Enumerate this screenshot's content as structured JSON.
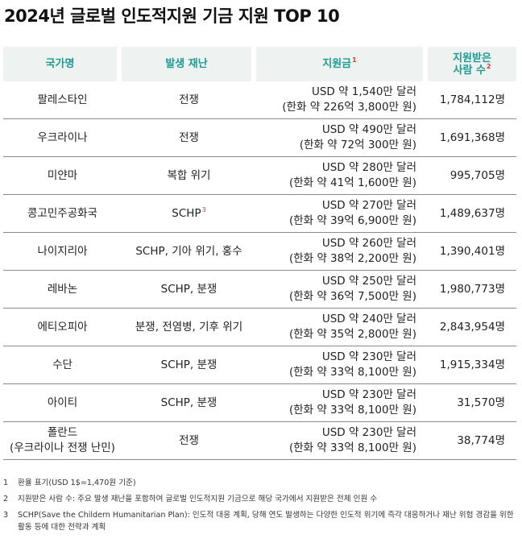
{
  "title": "2024년 글로벌 인도적지원 기금 지원 TOP 10",
  "headers": {
    "country": "국가명",
    "disaster": "발생 재난",
    "amount": "지원금",
    "amount_sup": "1",
    "people_line1": "지원받은",
    "people_line2": "사람 수",
    "people_sup": "2"
  },
  "rows": [
    {
      "country": "팔레스타인",
      "country2": "",
      "disaster": "전쟁",
      "disaster_sup": "",
      "usd": "USD 약 1,540만 달러",
      "krw": "(한화 약 226억 3,800만 원)",
      "people": "1,784,112명"
    },
    {
      "country": "우크라이나",
      "country2": "",
      "disaster": "전쟁",
      "disaster_sup": "",
      "usd": "USD 약 490만 달러",
      "krw": "(한화 약 72억 300만 원)",
      "people": "1,691,368명"
    },
    {
      "country": "미얀마",
      "country2": "",
      "disaster": "복합 위기",
      "disaster_sup": "",
      "usd": "USD 약 280만 달러",
      "krw": "(한화 약 41억 1,600만 원)",
      "people": "995,705명"
    },
    {
      "country": "콩고민주공화국",
      "country2": "",
      "disaster": "SCHP",
      "disaster_sup": "3",
      "usd": "USD 약 270만 달러",
      "krw": "(한화 약 39억 6,900만 원)",
      "people": "1,489,637명"
    },
    {
      "country": "나이지리아",
      "country2": "",
      "disaster": "SCHP, 기아 위기, 홍수",
      "disaster_sup": "",
      "usd": "USD 약 260만 달러",
      "krw": "(한화 약 38억 2,200만 원)",
      "people": "1,390,401명"
    },
    {
      "country": "레바논",
      "country2": "",
      "disaster": "SCHP, 분쟁",
      "disaster_sup": "",
      "usd": "USD 약 250만 달러",
      "krw": "(한화 약 36억 7,500만 원)",
      "people": "1,980,773명"
    },
    {
      "country": "에티오피아",
      "country2": "",
      "disaster": "분쟁, 전염병, 기후 위기",
      "disaster_sup": "",
      "usd": "USD 약 240만 달러",
      "krw": "(한화 약 35억 2,800만 원)",
      "people": "2,843,954명"
    },
    {
      "country": "수단",
      "country2": "",
      "disaster": "SCHP, 분쟁",
      "disaster_sup": "",
      "usd": "USD 약 230만 달러",
      "krw": "(한화 약 33억 8,100만 원)",
      "people": "1,915,334명"
    },
    {
      "country": "아이티",
      "country2": "",
      "disaster": "SCHP, 분쟁",
      "disaster_sup": "",
      "usd": "USD 약 230만 달러",
      "krw": "(한화 약 33억 8,100만 원)",
      "people": "31,570명"
    },
    {
      "country": "폴란드",
      "country2": "(우크라이나 전쟁 난민)",
      "disaster": "전쟁",
      "disaster_sup": "",
      "usd": "USD 약 230만 달러",
      "krw": "(한화 약 33억 8,100만 원)",
      "people": "38,774명"
    }
  ],
  "notes": [
    {
      "num": "1",
      "text": "환율 표기(USD 1$=1,470원 기준)"
    },
    {
      "num": "2",
      "text": "지원받은 사람 수: 주요 발생 재난을 포함하여 글로벌 인도적지원 기금으로 해당 국가에서 지원받은 전체 인원 수"
    },
    {
      "num": "3",
      "text": "SCHP(Save the Childern Humanitarian Plan): 인도적 대응 계획, 당해 연도 발생하는 다양한 인도적 위기에 즉각 대응하거나 재난 위험 경감을 위한 활동 등에 대한 전략과 계획"
    }
  ],
  "colors": {
    "header_bg": "#eef2f1",
    "header_text": "#1c9b92",
    "superscript": "#d23a3a",
    "row_divider": "#8a8a8a"
  }
}
